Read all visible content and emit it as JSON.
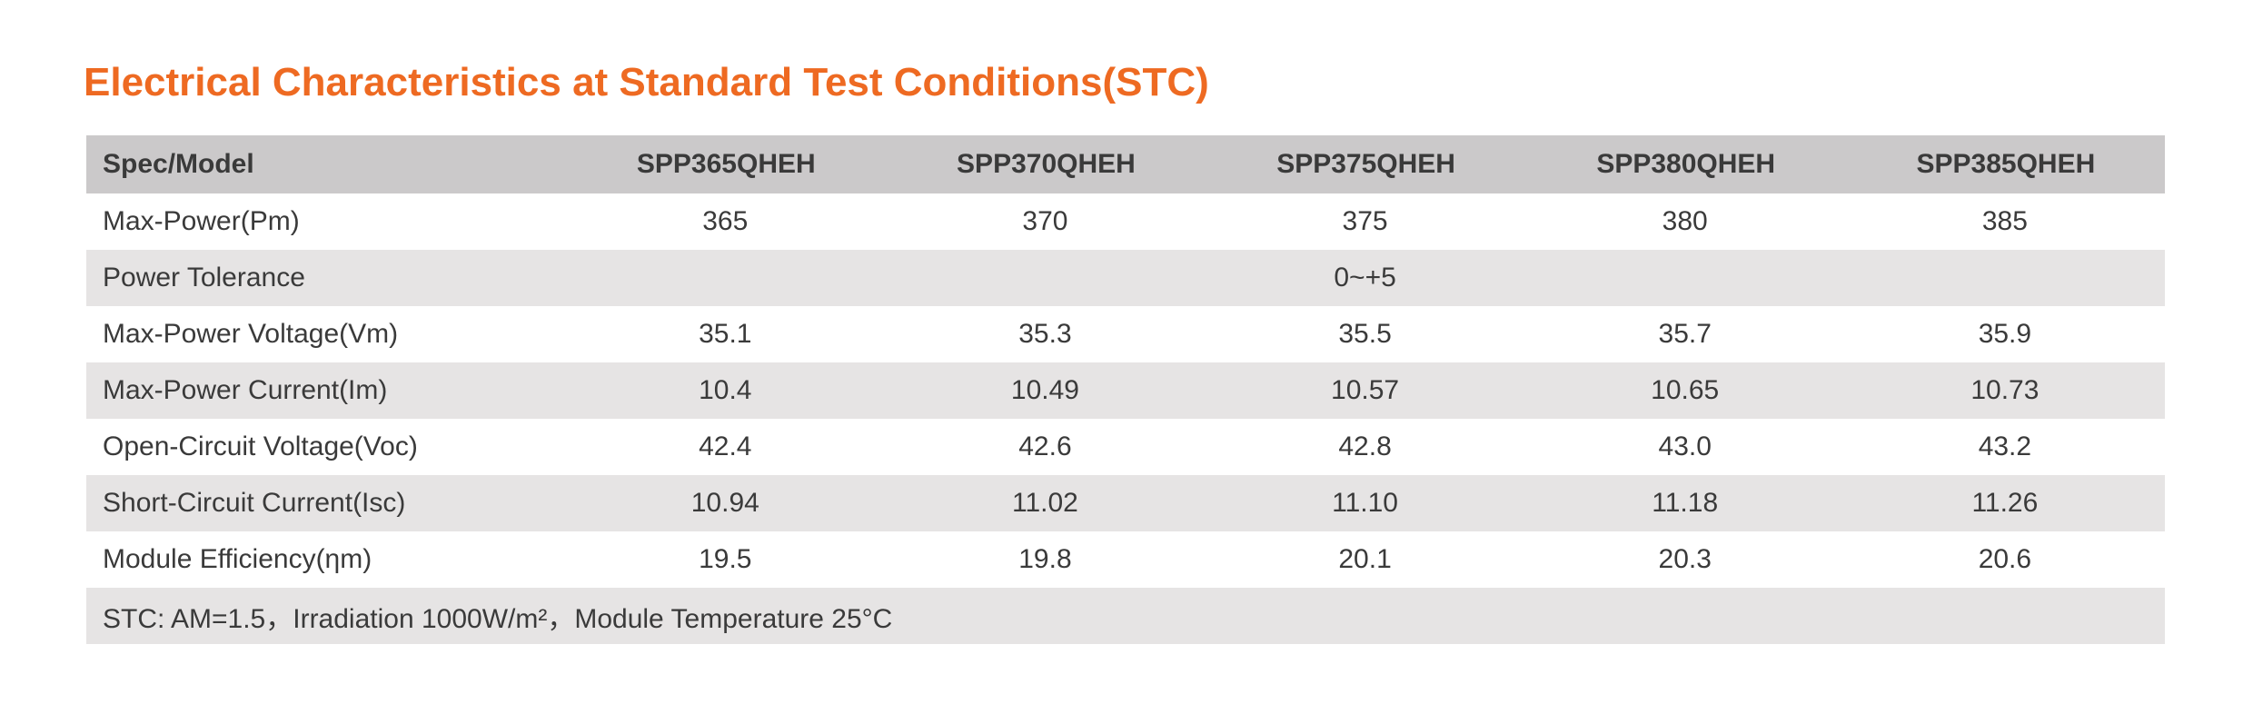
{
  "title": "Electrical Characteristics at Standard Test Conditions(STC)",
  "header": {
    "label": "Spec/Model",
    "models": [
      "SPP365QHEH",
      "SPP370QHEH",
      "SPP375QHEH",
      "SPP380QHEH",
      "SPP385QHEH"
    ]
  },
  "rows": {
    "max_power": {
      "label": "Max-Power(Pm)",
      "values": [
        "365",
        "370",
        "375",
        "380",
        "385"
      ]
    },
    "power_tolerance": {
      "label": "Power Tolerance",
      "value": "0~+5"
    },
    "max_power_voltage": {
      "label": "Max-Power Voltage(Vm)",
      "values": [
        "35.1",
        "35.3",
        "35.5",
        "35.7",
        "35.9"
      ]
    },
    "max_power_current": {
      "label": "Max-Power Current(Im)",
      "values": [
        "10.4",
        "10.49",
        "10.57",
        "10.65",
        "10.73"
      ]
    },
    "open_circuit_voltage": {
      "label": "Open-Circuit Voltage(Voc)",
      "values": [
        "42.4",
        "42.6",
        "42.8",
        "43.0",
        "43.2"
      ]
    },
    "short_circuit_current": {
      "label": "Short-Circuit Current(Isc)",
      "values": [
        "10.94",
        "11.02",
        "11.10",
        "11.18",
        "11.26"
      ]
    },
    "module_efficiency": {
      "label": "Module Efficiency(ηm)",
      "values": [
        "19.5",
        "19.8",
        "20.1",
        "20.3",
        "20.6"
      ]
    }
  },
  "footnote": "STC: AM=1.5，Irradiation 1000W/m²，Module Temperature 25°C",
  "colors": {
    "title": "#ee6a22",
    "header_bg": "#cbc9ca",
    "shaded_row_bg": "#e6e4e4",
    "text": "#3a3a3a"
  }
}
